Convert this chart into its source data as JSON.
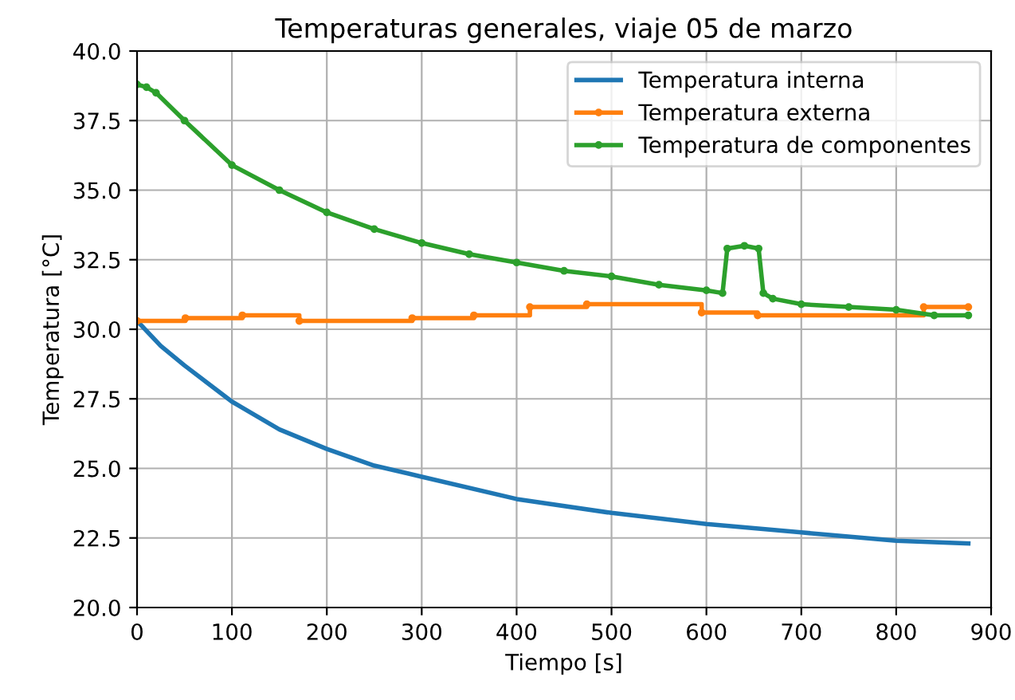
{
  "chart_data": {
    "type": "line",
    "title": "Temperaturas generales, viaje 05 de marzo",
    "xlabel": "Tiempo [s]",
    "ylabel": "Temperatura [°C]",
    "xlim": [
      0,
      900
    ],
    "xticks": [
      0,
      100,
      200,
      300,
      400,
      500,
      600,
      700,
      800,
      900
    ],
    "ylim": [
      20,
      40
    ],
    "yticks": [
      {
        "value": 20,
        "label": "20.0"
      },
      {
        "value": 22.5,
        "label": "22.5"
      },
      {
        "value": 25,
        "label": "25.0"
      },
      {
        "value": 27.5,
        "label": "27.5"
      },
      {
        "value": 30,
        "label": "30.0"
      },
      {
        "value": 32.5,
        "label": "32.5"
      },
      {
        "value": 35,
        "label": "35.0"
      },
      {
        "value": 37.5,
        "label": "37.5"
      },
      {
        "value": 40,
        "label": "40.0"
      }
    ],
    "grid": true,
    "legend": "top right",
    "series": [
      {
        "name": "Temperatura interna",
        "color": "#1f77b4",
        "marker": "none",
        "x": [
          0,
          25,
          50,
          100,
          150,
          200,
          250,
          300,
          400,
          500,
          600,
          700,
          800,
          876
        ],
        "values": [
          30.3,
          29.4,
          28.7,
          27.4,
          26.4,
          25.7,
          25.1,
          24.7,
          23.9,
          23.4,
          23.0,
          22.7,
          22.4,
          22.3
        ]
      },
      {
        "name": "Temperatura externa",
        "type": "step",
        "color": "#ff7f0e",
        "marker": "circle",
        "x": [
          0,
          51,
          111,
          171,
          290,
          355,
          414,
          474,
          595,
          654,
          829,
          876
        ],
        "values": [
          30.3,
          30.4,
          30.5,
          30.3,
          30.4,
          30.5,
          30.8,
          30.9,
          30.6,
          30.5,
          30.8,
          30.8
        ]
      },
      {
        "name": "Temperatura de componentes",
        "color": "#2ca02c",
        "marker": "circle",
        "x": [
          0,
          10,
          20,
          50,
          100,
          150,
          200,
          250,
          300,
          350,
          400,
          450,
          500,
          550,
          600,
          617,
          622,
          640,
          655,
          660,
          670,
          700,
          750,
          800,
          840,
          876
        ],
        "values": [
          38.8,
          38.7,
          38.5,
          37.5,
          35.9,
          35.0,
          34.2,
          33.6,
          33.1,
          32.7,
          32.4,
          32.1,
          31.9,
          31.6,
          31.4,
          31.3,
          32.9,
          33.0,
          32.9,
          31.3,
          31.1,
          30.9,
          30.8,
          30.7,
          30.5,
          30.5
        ]
      }
    ]
  }
}
